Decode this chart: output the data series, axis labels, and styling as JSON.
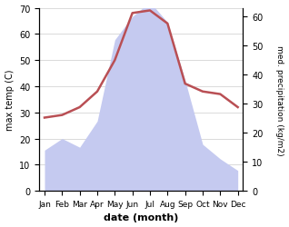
{
  "months": [
    "Jan",
    "Feb",
    "Mar",
    "Apr",
    "May",
    "Jun",
    "Jul",
    "Aug",
    "Sep",
    "Oct",
    "Nov",
    "Dec"
  ],
  "temp": [
    28,
    29,
    32,
    38,
    50,
    68,
    69,
    64,
    41,
    38,
    37,
    32
  ],
  "precip": [
    14,
    18,
    15,
    24,
    52,
    60,
    65,
    58,
    38,
    16,
    11,
    7
  ],
  "temp_color": "#b94f54",
  "precip_fill_color": "#c5caf0",
  "xlabel": "date (month)",
  "ylabel_left": "max temp (C)",
  "ylabel_right": "med. precipitation (kg/m2)",
  "ylim_left": [
    0,
    70
  ],
  "ylim_right": [
    0,
    63
  ],
  "bg_color": "#ffffff",
  "grid_color": "#cccccc"
}
